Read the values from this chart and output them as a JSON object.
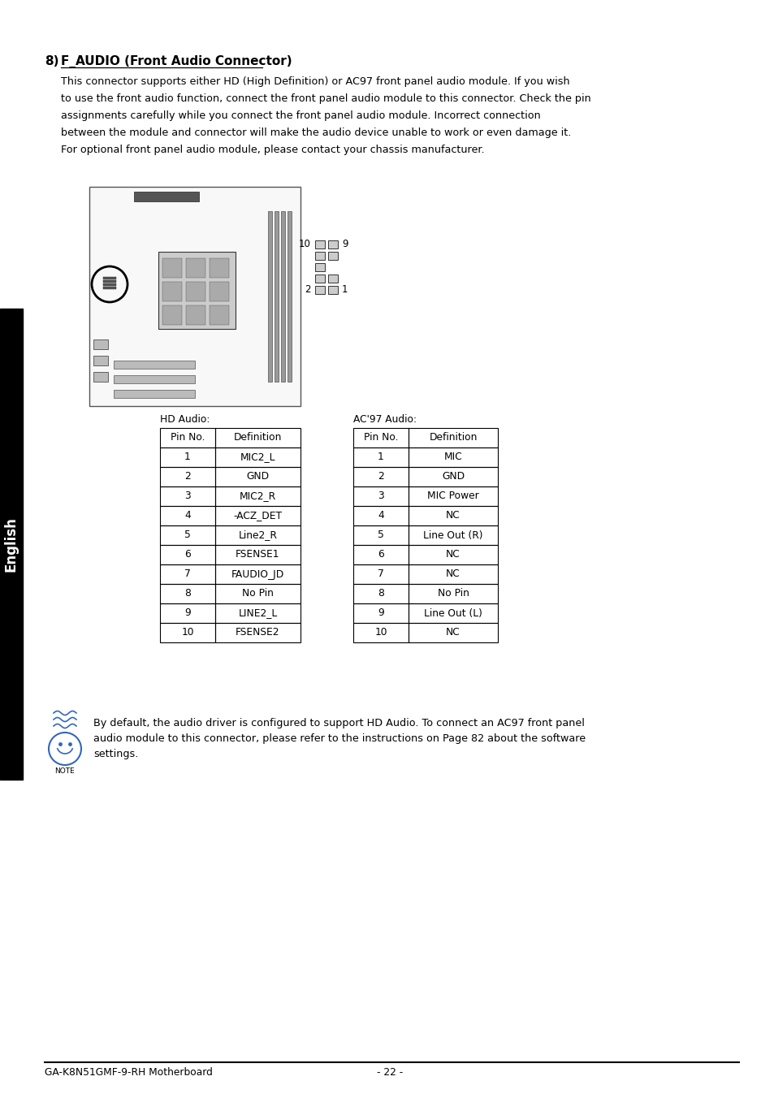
{
  "section_number": "8)",
  "section_title": "F_AUDIO (Front Audio Connector)",
  "body_text_lines": [
    "This connector supports either HD (High Definition) or AC97 front panel audio module. If you wish",
    "to use the front audio function, connect the front panel audio module to this connector. Check the pin",
    "assignments carefully while you connect the front panel audio module. Incorrect connection",
    "between the module and connector will make the audio device unable to work or even damage it.",
    "For optional front panel audio module, please contact your chassis manufacturer."
  ],
  "hd_audio_label": "HD Audio:",
  "hd_audio_headers": [
    "Pin No.",
    "Definition"
  ],
  "hd_audio_rows": [
    [
      "1",
      "MIC2_L"
    ],
    [
      "2",
      "GND"
    ],
    [
      "3",
      "MIC2_R"
    ],
    [
      "4",
      "-ACZ_DET"
    ],
    [
      "5",
      "Line2_R"
    ],
    [
      "6",
      "FSENSE1"
    ],
    [
      "7",
      "FAUDIO_JD"
    ],
    [
      "8",
      "No Pin"
    ],
    [
      "9",
      "LINE2_L"
    ],
    [
      "10",
      "FSENSE2"
    ]
  ],
  "ac97_audio_label": "AC'97 Audio:",
  "ac97_audio_headers": [
    "Pin No.",
    "Definition"
  ],
  "ac97_audio_rows": [
    [
      "1",
      "MIC"
    ],
    [
      "2",
      "GND"
    ],
    [
      "3",
      "MIC Power"
    ],
    [
      "4",
      "NC"
    ],
    [
      "5",
      "Line Out (R)"
    ],
    [
      "6",
      "NC"
    ],
    [
      "7",
      "NC"
    ],
    [
      "8",
      "No Pin"
    ],
    [
      "9",
      "Line Out (L)"
    ],
    [
      "10",
      "NC"
    ]
  ],
  "note_text_lines": [
    "By default, the audio driver is configured to support HD Audio. To connect an AC97 front panel",
    "audio module to this connector, please refer to the instructions on Page 82 about the software",
    "settings."
  ],
  "footer_left": "GA-K8N51GMF-9-RH Motherboard",
  "footer_right": "- 22 -",
  "sidebar_text": "English",
  "pin_label_top_left": "10",
  "pin_label_top_right": "9",
  "pin_label_bot_left": "2",
  "pin_label_bot_right": "1",
  "background_color": "#ffffff",
  "sidebar_color": "#000000",
  "text_color": "#000000",
  "note_icon_color": "#3366bb"
}
